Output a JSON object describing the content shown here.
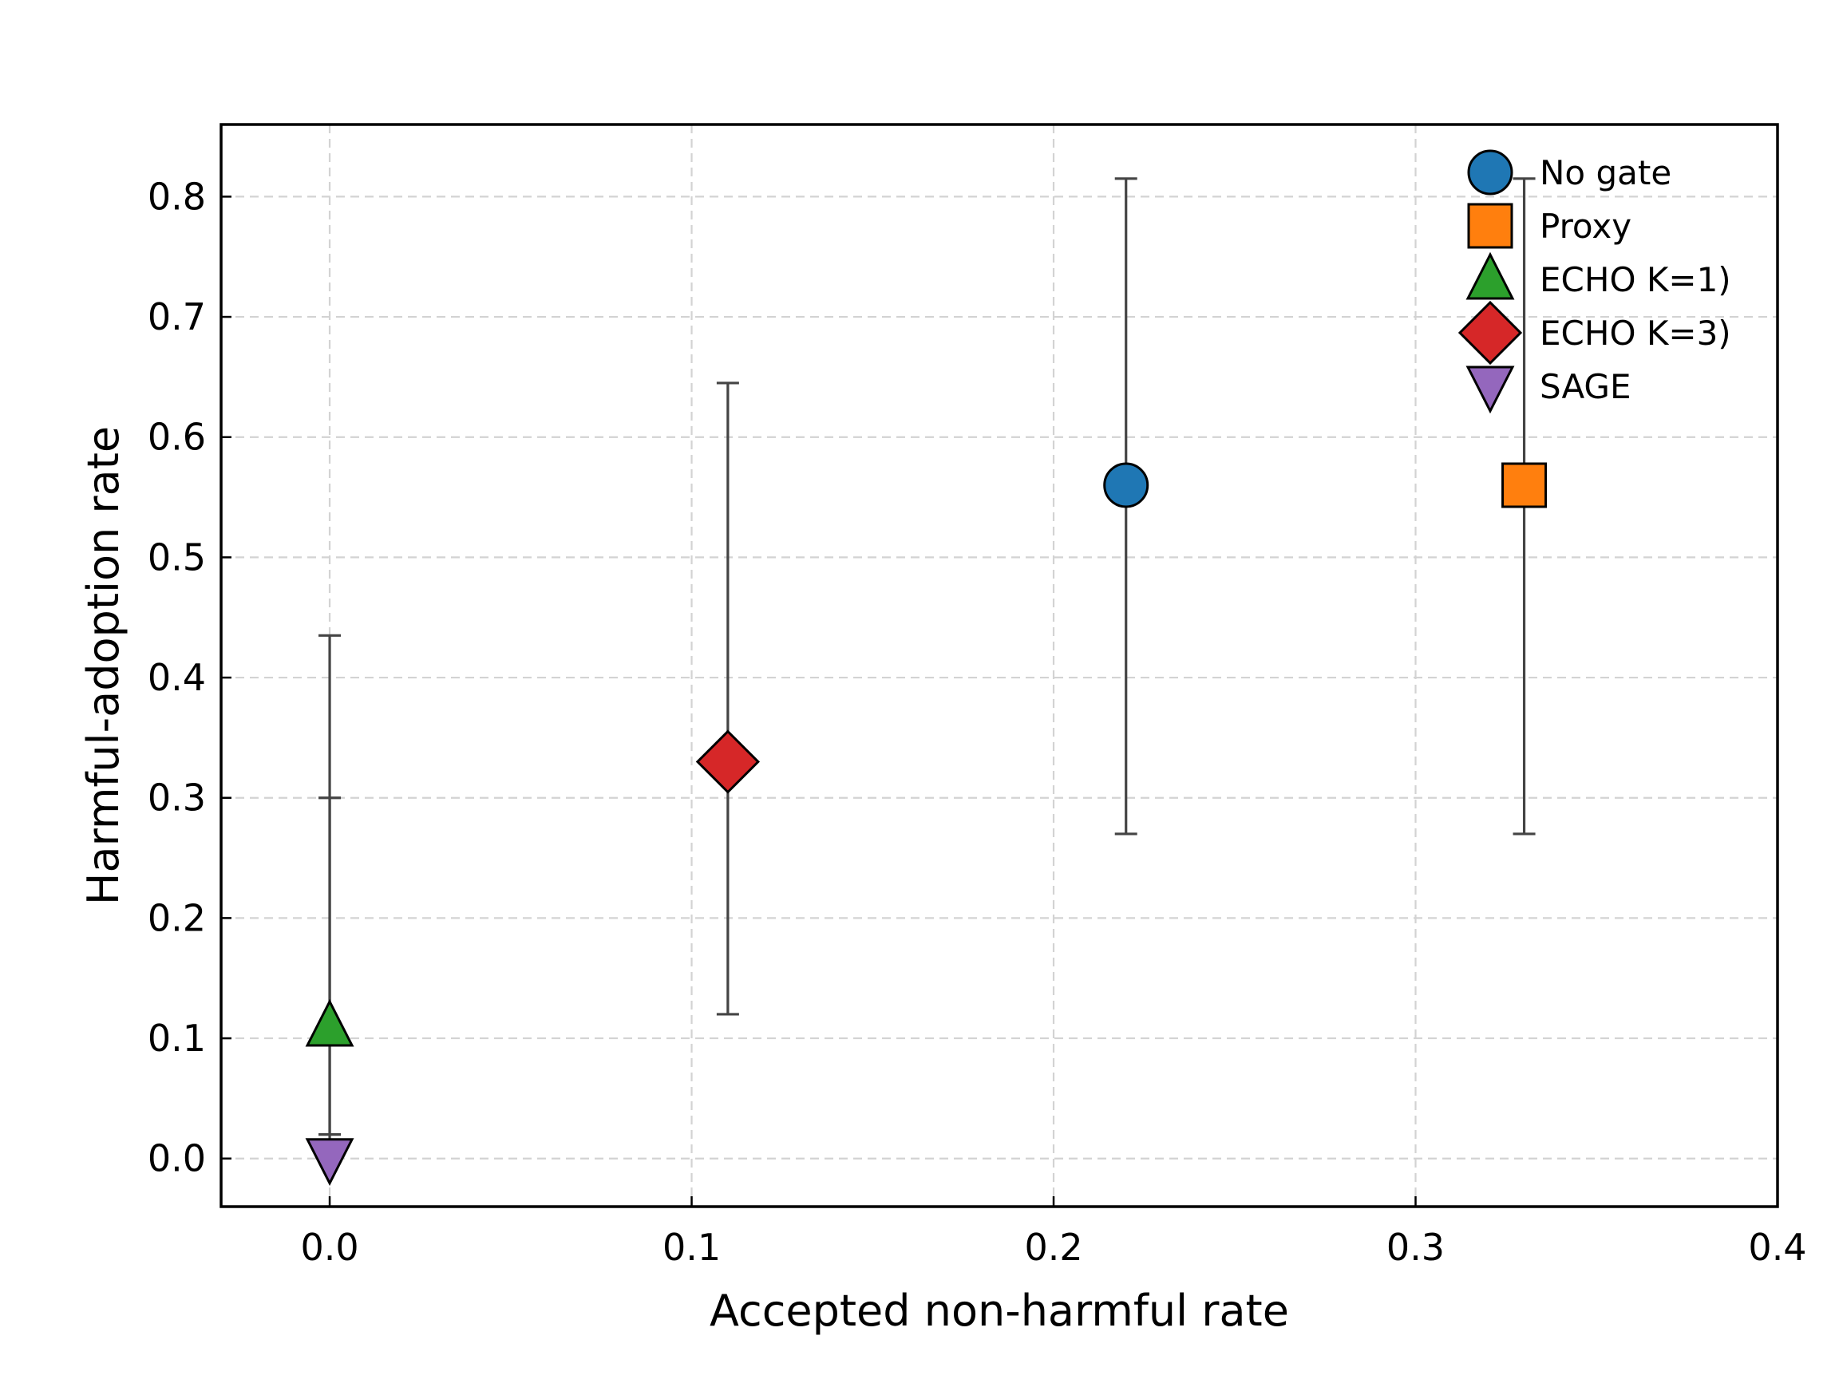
{
  "chart_data": {
    "type": "scatter",
    "title": "",
    "xlabel": "Accepted non-harmful rate",
    "ylabel": "Harmful-adoption rate",
    "xlim": [
      -0.03,
      0.4
    ],
    "ylim": [
      -0.04,
      0.86
    ],
    "xticks": [
      "0.0",
      "0.1",
      "0.2",
      "0.3",
      "0.4"
    ],
    "yticks": [
      "0.0",
      "0.1",
      "0.2",
      "0.3",
      "0.4",
      "0.5",
      "0.6",
      "0.7",
      "0.8"
    ],
    "grid": true,
    "legend_position": "top-right",
    "series": [
      {
        "name": "No gate",
        "marker": "circle",
        "color": "#1f77b4",
        "x": 0.22,
        "y": 0.56,
        "err_low": 0.27,
        "err_high": 0.815
      },
      {
        "name": "Proxy",
        "marker": "square",
        "color": "#ff7f0e",
        "x": 0.33,
        "y": 0.56,
        "err_low": 0.27,
        "err_high": 0.815
      },
      {
        "name": "ECHO K=1)",
        "marker": "triangle-up",
        "color": "#2ca02c",
        "x": 0.0,
        "y": 0.11,
        "err_low": 0.02,
        "err_high": 0.3
      },
      {
        "name": "ECHO K=3)",
        "marker": "diamond",
        "color": "#d62728",
        "x": 0.11,
        "y": 0.33,
        "err_low": 0.12,
        "err_high": 0.645
      },
      {
        "name": "SAGE",
        "marker": "triangle-down",
        "color": "#9467bd",
        "x": 0.0,
        "y": 0.0,
        "err_low": 0.0,
        "err_high": 0.435
      }
    ]
  }
}
